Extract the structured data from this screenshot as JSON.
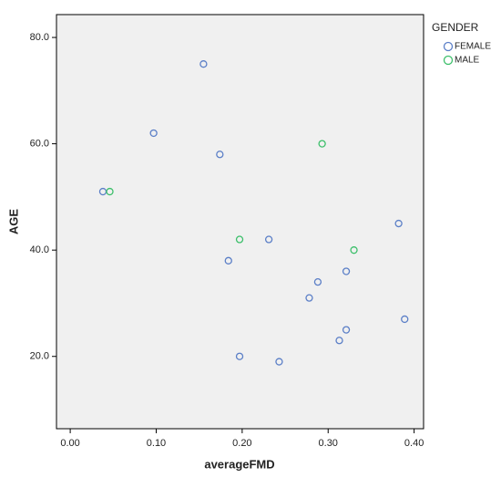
{
  "chart_data": {
    "type": "scatter",
    "x_label": "averageFMD",
    "y_label": "AGE",
    "legend_title": "GENDER",
    "xlim": [
      -0.016,
      0.411
    ],
    "xticks": [
      {
        "value": 0,
        "label": "0.00"
      },
      {
        "value": 0.1,
        "label": "0.10"
      },
      {
        "value": 0.2,
        "label": "0.20"
      },
      {
        "value": 0.3,
        "label": "0.30"
      },
      {
        "value": 0.4,
        "label": "0.40"
      }
    ],
    "ylim": [
      6.4,
      84.3
    ],
    "yticks": [
      {
        "value": 20,
        "label": "20.0"
      },
      {
        "value": 40,
        "label": "40.0"
      },
      {
        "value": 60,
        "label": "60.0"
      },
      {
        "value": 80,
        "label": "80.0"
      }
    ],
    "series": [
      {
        "name": "FEMALE",
        "color": "#5b7fc7",
        "x": [
          0.038,
          0.097,
          0.155,
          0.174,
          0.184,
          0.197,
          0.231,
          0.243,
          0.278,
          0.288,
          0.321,
          0.313,
          0.321,
          0.382,
          0.389
        ],
        "values": [
          51,
          62,
          75,
          58,
          38,
          20,
          42,
          19,
          31,
          34,
          36,
          23,
          25,
          45,
          27
        ]
      },
      {
        "name": "MALE",
        "color": "#3cbf6a",
        "x": [
          0.046,
          0.197,
          0.293,
          0.33
        ],
        "values": [
          51,
          42,
          60,
          40
        ]
      }
    ]
  }
}
